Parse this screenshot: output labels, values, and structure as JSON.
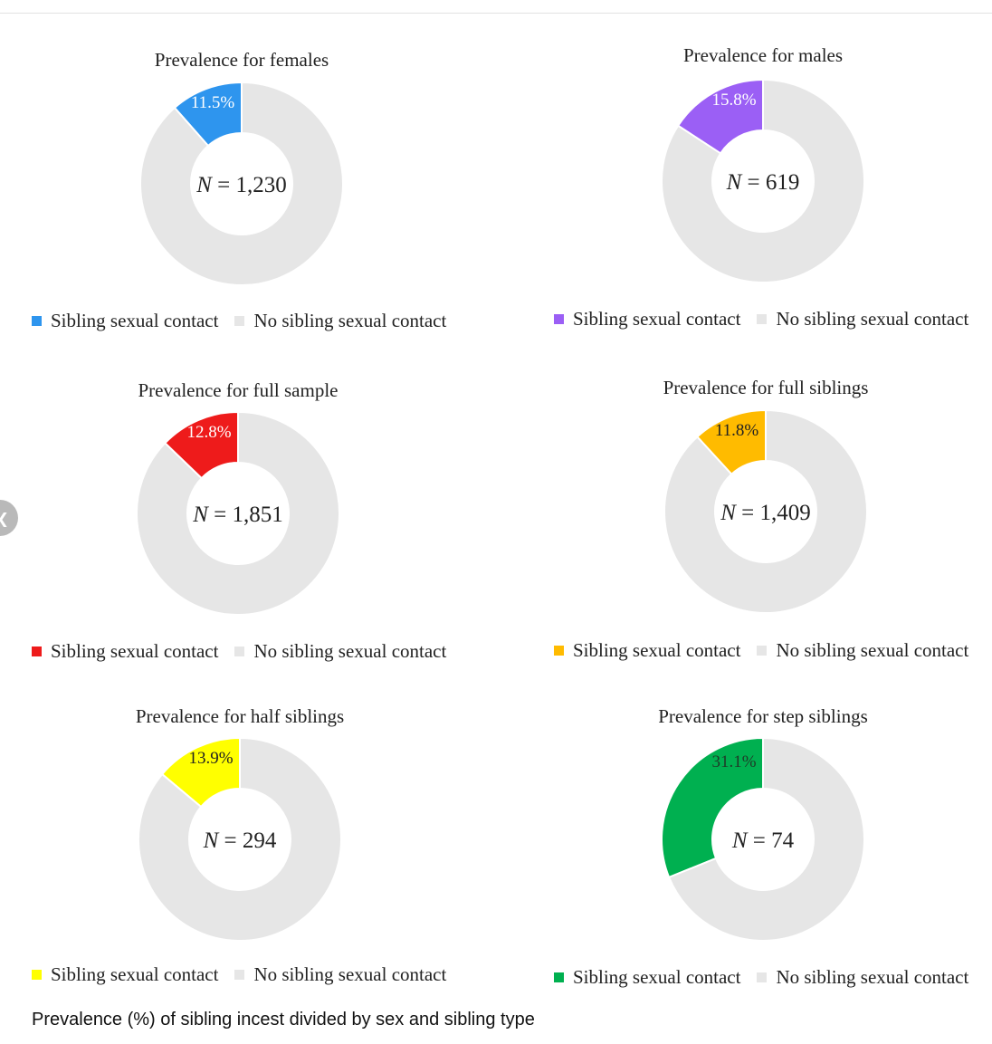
{
  "caption": "Prevalence (%) of sibling incest divided by sex and sibling type",
  "nav": {
    "prev_icon": "chevron-left-icon"
  },
  "colors": {
    "no_contact": "#e6e6e6"
  },
  "chart_data": [
    {
      "type": "pie",
      "title": "Prevalence for females",
      "center_label_var": "N",
      "center_label_value": "= 1,230",
      "labels": [
        "Sibling sexual contact",
        "No sibling sexual contact"
      ],
      "values": [
        11.5,
        88.5
      ],
      "slice_label": "11.5%",
      "colors": [
        "#2e95ee",
        "#e6e6e6"
      ]
    },
    {
      "type": "pie",
      "title": "Prevalence for males",
      "center_label_var": "N",
      "center_label_value": "= 619",
      "labels": [
        "Sibling sexual contact",
        "No sibling sexual contact"
      ],
      "values": [
        15.8,
        84.2
      ],
      "slice_label": "15.8%",
      "colors": [
        "#9b5ff5",
        "#e6e6e6"
      ]
    },
    {
      "type": "pie",
      "title": "Prevalence for full sample",
      "center_label_var": "N",
      "center_label_value": "= 1,851",
      "labels": [
        "Sibling sexual contact",
        "No sibling sexual contact"
      ],
      "values": [
        12.8,
        87.2
      ],
      "slice_label": "12.8%",
      "colors": [
        "#ee1b1b",
        "#e6e6e6"
      ]
    },
    {
      "type": "pie",
      "title": "Prevalence for full siblings",
      "center_label_var": "N",
      "center_label_value": "= 1,409",
      "labels": [
        "Sibling sexual contact",
        "No sibling sexual contact"
      ],
      "values": [
        11.8,
        88.2
      ],
      "slice_label": "11.8%",
      "colors": [
        "#ffbb00",
        "#e6e6e6"
      ]
    },
    {
      "type": "pie",
      "title": "Prevalence for half siblings",
      "center_label_var": "N",
      "center_label_value": "= 294",
      "labels": [
        "Sibling sexual contact",
        "No sibling sexual contact"
      ],
      "values": [
        13.9,
        86.1
      ],
      "slice_label": "13.9%",
      "colors": [
        "#ffff00",
        "#e6e6e6"
      ]
    },
    {
      "type": "pie",
      "title": "Prevalence for step siblings",
      "center_label_var": "N",
      "center_label_value": "= 74",
      "labels": [
        "Sibling sexual contact",
        "No sibling sexual contact"
      ],
      "values": [
        31.1,
        68.9
      ],
      "slice_label": "31.1%",
      "colors": [
        "#00b050",
        "#e6e6e6"
      ]
    }
  ]
}
